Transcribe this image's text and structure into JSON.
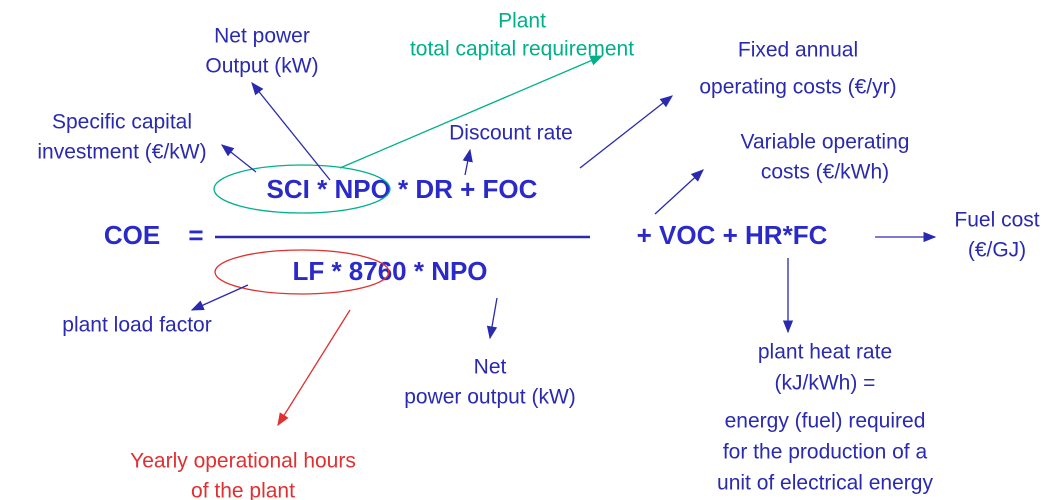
{
  "formula": {
    "lhs": "COE",
    "equals": "=",
    "numerator": "SCI * NPO * DR + FOC",
    "denominator": "LF * 8760 * NPO",
    "rest": "+ VOC + HR*FC"
  },
  "annotations": {
    "net_power_output": [
      "Net power",
      "Output (kW)"
    ],
    "plant_capital": [
      "Plant",
      "total capital requirement"
    ],
    "fixed_costs": [
      "Fixed annual",
      "operating costs (€/yr)"
    ],
    "specific_capital": [
      "Specific capital",
      "investment (€/kW)"
    ],
    "discount_rate": [
      "Discount rate"
    ],
    "variable_costs": [
      "Variable operating",
      "costs (€/kWh)"
    ],
    "fuel_cost": [
      "Fuel cost",
      "(€/GJ)"
    ],
    "load_factor": [
      "plant load factor"
    ],
    "net_power_output_2": [
      "Net",
      "power output (kW)"
    ],
    "heat_rate": [
      "plant heat rate",
      "(kJ/kWh) ="
    ],
    "heat_rate_def": [
      "energy (fuel) required",
      "for the production of a",
      "unit of electrical energy"
    ],
    "yearly_hours": [
      "Yearly operational hours",
      "of the plant"
    ]
  }
}
